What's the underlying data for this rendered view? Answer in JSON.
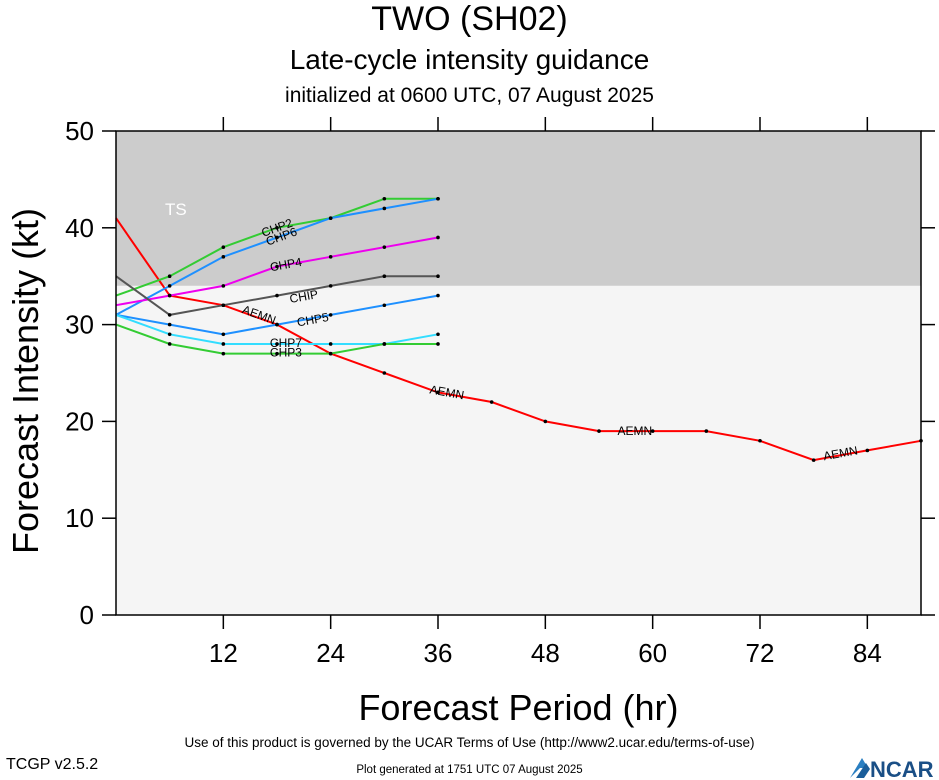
{
  "header": {
    "title": "TWO (SH02)",
    "subtitle": "Late-cycle intensity guidance",
    "init_line": "initialized at 0600 UTC, 07 August 2025"
  },
  "footer": {
    "terms": "Use of this product is governed by the UCAR Terms of Use (http://www2.ucar.edu/terms-of-use)",
    "version": "TCGP v2.5.2",
    "generated": "Plot generated at 1751 UTC   07 August 2025",
    "logo_text": "NCAR"
  },
  "chart_data": {
    "type": "line",
    "title": "TWO (SH02)",
    "subtitle": "Late-cycle intensity guidance",
    "xlabel": "Forecast Period (hr)",
    "ylabel": "Forecast Intensity (kt)",
    "xlim": [
      0,
      90
    ],
    "ylim": [
      0,
      50
    ],
    "xticks": [
      12,
      24,
      36,
      48,
      60,
      72,
      84
    ],
    "yticks": [
      0,
      10,
      20,
      30,
      40,
      50
    ],
    "grid": false,
    "bands": [
      {
        "label": "TS",
        "from": 34,
        "to": 50,
        "color": "#cccccc"
      },
      {
        "label": "",
        "from": 0,
        "to": 34,
        "color": "#f5f5f5"
      }
    ],
    "series": [
      {
        "name": "AEMN",
        "color": "#ff0000",
        "x": [
          0,
          6,
          12,
          18,
          24,
          30,
          36,
          42,
          48,
          54,
          60,
          66,
          72,
          78,
          84,
          90
        ],
        "values": [
          41,
          33,
          32,
          30,
          27,
          25,
          23,
          22,
          20,
          19,
          19,
          19,
          18,
          16,
          17,
          18
        ],
        "label_at": [
          [
            16,
            31
          ],
          [
            37,
            23
          ],
          [
            58,
            19
          ],
          [
            81,
            16.7
          ]
        ]
      },
      {
        "name": "CHP2",
        "color": "#33cc33",
        "x": [
          0,
          6,
          12,
          18,
          24,
          30,
          36
        ],
        "values": [
          33,
          35,
          38,
          40,
          41,
          43,
          43
        ],
        "label_at": [
          [
            18,
            40
          ]
        ]
      },
      {
        "name": "CHP6",
        "color": "#1e90ff",
        "x": [
          0,
          6,
          12,
          18,
          24,
          30,
          36
        ],
        "values": [
          31,
          34,
          37,
          39,
          41,
          42,
          43
        ],
        "label_at": [
          [
            18.5,
            39.1
          ]
        ]
      },
      {
        "name": "CHP4",
        "color": "#ee00ee",
        "x": [
          0,
          6,
          12,
          18,
          24,
          30,
          36
        ],
        "values": [
          32,
          33,
          34,
          36,
          37,
          38,
          39
        ],
        "label_at": [
          [
            19,
            36.2
          ]
        ]
      },
      {
        "name": "CHIP",
        "color": "#555555",
        "x": [
          0,
          6,
          12,
          18,
          24,
          30,
          36
        ],
        "values": [
          35,
          31,
          32,
          33,
          34,
          35,
          35
        ],
        "label_at": [
          [
            21,
            32.9
          ]
        ]
      },
      {
        "name": "CHP5",
        "color": "#1e90ff",
        "x": [
          0,
          6,
          12,
          18,
          24,
          30,
          36
        ],
        "values": [
          31,
          30,
          29,
          30,
          31,
          32,
          33
        ],
        "label_at": [
          [
            22,
            30.5
          ]
        ]
      },
      {
        "name": "CHP7",
        "color": "#33ddff",
        "x": [
          0,
          6,
          12,
          18,
          24,
          30,
          36
        ],
        "values": [
          31,
          29,
          28,
          28,
          28,
          28,
          29
        ],
        "label_at": [
          [
            19,
            28.1
          ]
        ]
      },
      {
        "name": "CHP3",
        "color": "#33cc33",
        "x": [
          0,
          6,
          12,
          18,
          24,
          30,
          36
        ],
        "values": [
          30,
          28,
          27,
          27,
          27,
          28,
          28
        ],
        "label_at": [
          [
            19,
            27.1
          ]
        ]
      }
    ]
  }
}
